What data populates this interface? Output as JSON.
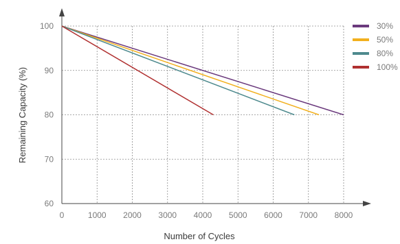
{
  "chart_data": {
    "type": "line",
    "xlabel": "Number of Cycles",
    "ylabel": "Remaining Capacity (%)",
    "xlim": [
      0,
      8000
    ],
    "ylim": [
      60,
      100
    ],
    "x_ticks": [
      "0",
      "1000",
      "2000",
      "3000",
      "4000",
      "5000",
      "6000",
      "7000",
      "8000"
    ],
    "y_ticks": [
      "60",
      "70",
      "80",
      "90",
      "100"
    ],
    "grid": true,
    "grid_style": "dashed",
    "legend_position": "top-right",
    "series": [
      {
        "name": "30%",
        "color": "#6b3a7d",
        "points": [
          [
            0,
            100
          ],
          [
            8000,
            80
          ]
        ]
      },
      {
        "name": "50%",
        "color": "#f2b01e",
        "points": [
          [
            0,
            100
          ],
          [
            7300,
            80
          ]
        ]
      },
      {
        "name": "80%",
        "color": "#4e8a8e",
        "points": [
          [
            0,
            100
          ],
          [
            6600,
            80
          ]
        ]
      },
      {
        "name": "100%",
        "color": "#b03030",
        "points": [
          [
            0,
            100
          ],
          [
            4300,
            80
          ]
        ]
      }
    ]
  }
}
